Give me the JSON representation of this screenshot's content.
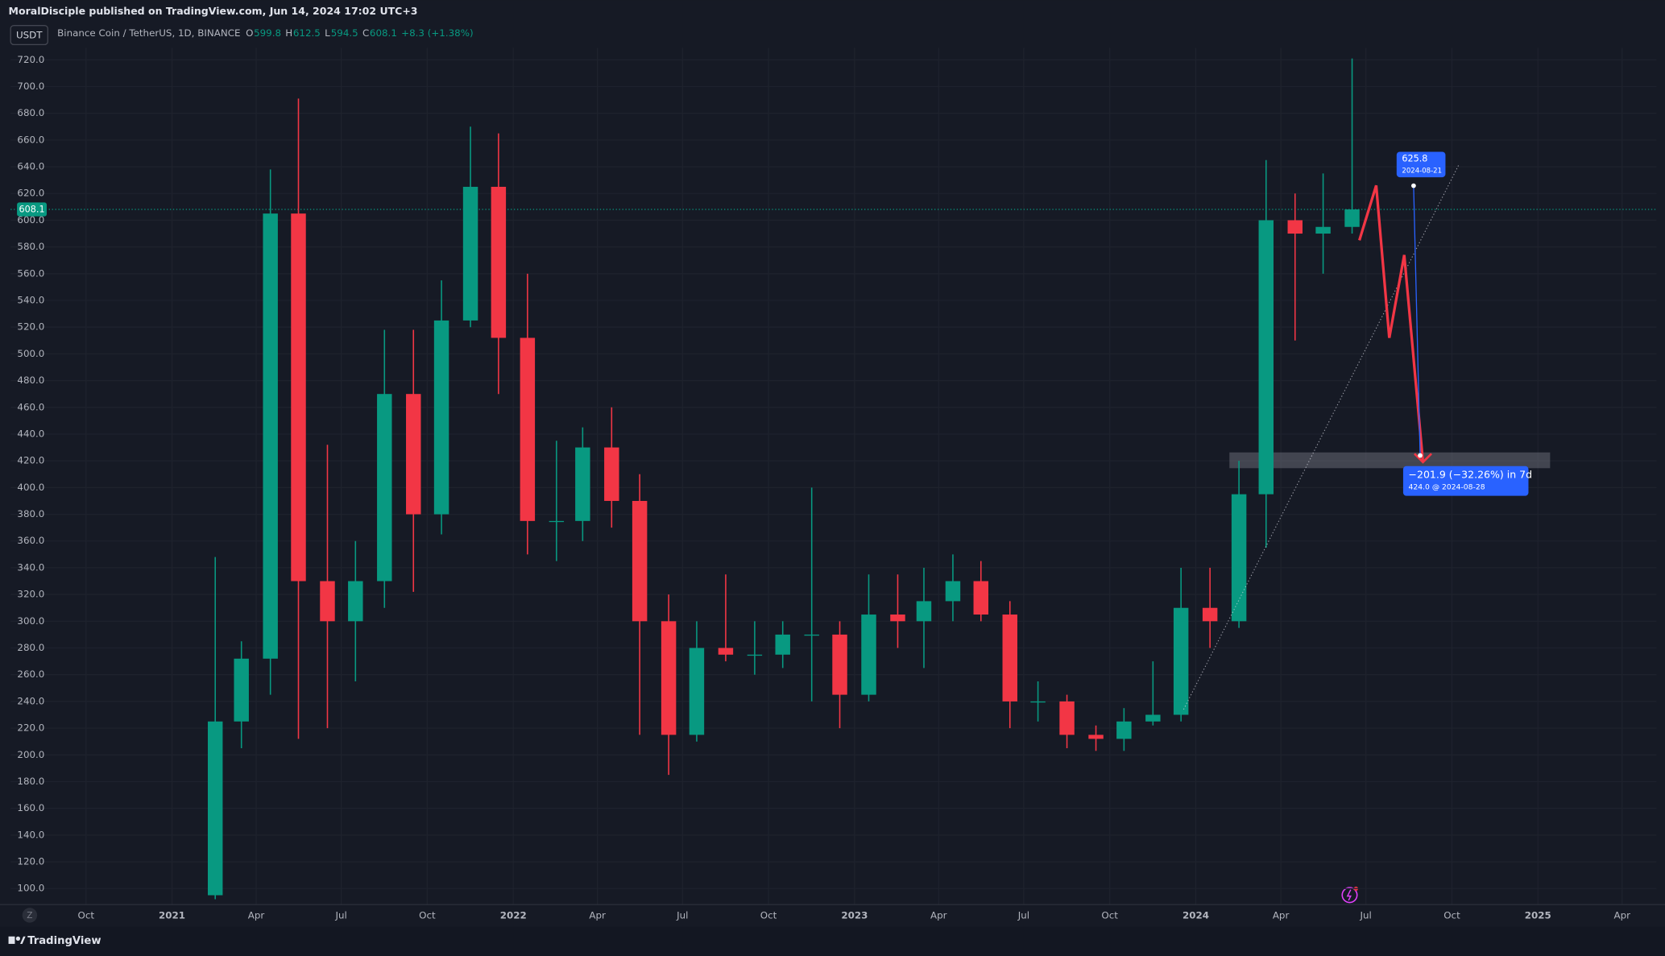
{
  "header": {
    "published": "MoralDisciple published on TradingView.com, Jun 14, 2024 17:02 UTC+3",
    "currency": "USDT",
    "symbol": "Binance Coin / TetherUS, 1D, BINANCE",
    "ohlc": [
      {
        "label": "O",
        "value": 599.8
      },
      {
        "label": "H",
        "value": 612.5
      },
      {
        "label": "L",
        "value": 594.5
      },
      {
        "label": "C",
        "value": 608.1
      }
    ],
    "change": "+8.3 (+1.38%)"
  },
  "chart_data": {
    "type": "candlestick",
    "x": [
      "2021-02",
      "2021-03",
      "2021-04",
      "2021-05",
      "2021-06",
      "2021-07",
      "2021-08",
      "2021-09",
      "2021-10",
      "2021-11",
      "2021-12",
      "2022-01",
      "2022-02",
      "2022-03",
      "2022-04",
      "2022-05",
      "2022-06",
      "2022-07",
      "2022-08",
      "2022-09",
      "2022-10",
      "2022-11",
      "2022-12",
      "2023-01",
      "2023-02",
      "2023-03",
      "2023-04",
      "2023-05",
      "2023-06",
      "2023-07",
      "2023-08",
      "2023-09",
      "2023-10",
      "2023-11",
      "2023-12",
      "2024-01",
      "2024-02",
      "2024-03",
      "2024-04",
      "2024-05",
      "2024-06"
    ],
    "open": [
      95,
      225,
      272,
      605,
      330,
      300,
      330,
      470,
      380,
      525,
      625,
      512,
      375,
      375,
      430,
      390,
      300,
      215,
      280,
      275,
      275,
      290,
      290,
      245,
      305,
      300,
      315,
      330,
      305,
      240,
      240,
      215,
      212,
      225,
      230,
      310,
      300,
      395,
      600,
      590,
      595
    ],
    "high": [
      348,
      285,
      638,
      691,
      432,
      360,
      518,
      518,
      555,
      670,
      665,
      560,
      435,
      445,
      460,
      410,
      320,
      300,
      335,
      300,
      300,
      400,
      300,
      335,
      335,
      340,
      350,
      345,
      315,
      255,
      245,
      222,
      235,
      270,
      340,
      340,
      420,
      645,
      620,
      635,
      721
    ],
    "low": [
      92,
      205,
      245,
      212,
      220,
      255,
      310,
      322,
      365,
      520,
      470,
      350,
      345,
      360,
      370,
      215,
      185,
      210,
      270,
      260,
      265,
      240,
      220,
      240,
      280,
      265,
      300,
      300,
      220,
      225,
      205,
      203,
      203,
      222,
      225,
      280,
      295,
      355,
      510,
      560,
      590
    ],
    "close": [
      225,
      272,
      605,
      330,
      300,
      330,
      470,
      380,
      525,
      625,
      512,
      375,
      375,
      430,
      390,
      300,
      215,
      280,
      275,
      275,
      290,
      290,
      245,
      305,
      300,
      315,
      330,
      305,
      240,
      240,
      215,
      212,
      225,
      230,
      310,
      300,
      395,
      600,
      590,
      595,
      608.1
    ],
    "up_color": "#089981",
    "down_color": "#f23645",
    "xlim": [
      "2020-07",
      "2025-05"
    ],
    "xticks": [
      {
        "value": "2020-10",
        "label": "Oct"
      },
      {
        "value": "2021-01",
        "label": "2021"
      },
      {
        "value": "2021-04",
        "label": "Apr"
      },
      {
        "value": "2021-07",
        "label": "Jul"
      },
      {
        "value": "2021-10",
        "label": "Oct"
      },
      {
        "value": "2022-01",
        "label": "2022"
      },
      {
        "value": "2022-04",
        "label": "Apr"
      },
      {
        "value": "2022-07",
        "label": "Jul"
      },
      {
        "value": "2022-10",
        "label": "Oct"
      },
      {
        "value": "2023-01",
        "label": "2023"
      },
      {
        "value": "2023-04",
        "label": "Apr"
      },
      {
        "value": "2023-07",
        "label": "Jul"
      },
      {
        "value": "2023-10",
        "label": "Oct"
      },
      {
        "value": "2024-01",
        "label": "2024"
      },
      {
        "value": "2024-04",
        "label": "Apr"
      },
      {
        "value": "2024-07",
        "label": "Jul"
      },
      {
        "value": "2024-10",
        "label": "Oct"
      },
      {
        "value": "2025-01",
        "label": "2025"
      },
      {
        "value": "2025-04",
        "label": "Apr"
      }
    ],
    "ylim": [
      88,
      729
    ],
    "yticks": [
      {
        "value": 100,
        "label": "100.0"
      },
      {
        "value": 120,
        "label": "120.0"
      },
      {
        "value": 140,
        "label": "140.0"
      },
      {
        "value": 160,
        "label": "160.0"
      },
      {
        "value": 180,
        "label": "180.0"
      },
      {
        "value": 200,
        "label": "200.0"
      },
      {
        "value": 220,
        "label": "220.0"
      },
      {
        "value": 240,
        "label": "240.0"
      },
      {
        "value": 260,
        "label": "260.0"
      },
      {
        "value": 280,
        "label": "280.0"
      },
      {
        "value": 300,
        "label": "300.0"
      },
      {
        "value": 320,
        "label": "320.0"
      },
      {
        "value": 340,
        "label": "340.0"
      },
      {
        "value": 360,
        "label": "360.0"
      },
      {
        "value": 380,
        "label": "380.0"
      },
      {
        "value": 400,
        "label": "400.0"
      },
      {
        "value": 420,
        "label": "420.0"
      },
      {
        "value": 440,
        "label": "440.0"
      },
      {
        "value": 460,
        "label": "460.0"
      },
      {
        "value": 480,
        "label": "480.0"
      },
      {
        "value": 500,
        "label": "500.0"
      },
      {
        "value": 520,
        "label": "520.0"
      },
      {
        "value": 540,
        "label": "540.0"
      },
      {
        "value": 560,
        "label": "560.0"
      },
      {
        "value": 580,
        "label": "580.0"
      },
      {
        "value": 600,
        "label": "600.0"
      },
      {
        "value": 620,
        "label": "620.0"
      },
      {
        "value": 640,
        "label": "640.0"
      },
      {
        "value": 660,
        "label": "660.0"
      },
      {
        "value": 680,
        "label": "680.0"
      },
      {
        "value": 700,
        "label": "700.0"
      },
      {
        "value": 720,
        "label": "720.0"
      }
    ],
    "grid": true,
    "last_price": {
      "value": 608.1,
      "label": "608.1",
      "color": "#089981"
    },
    "zone": {
      "x": [
        "2024-02-06",
        "2025-01-14"
      ],
      "y": [
        414.5,
        426.3
      ]
    },
    "trendline": {
      "x": [
        "2023-12-19",
        "2024-10-08"
      ],
      "y": [
        234,
        641
      ]
    },
    "projection": {
      "color": "#f23645",
      "x": [
        "2024-06-24",
        "2024-07-12",
        "2024-07-26",
        "2024-08-11",
        "2024-08-31"
      ],
      "y": [
        585,
        626,
        512,
        574,
        419
      ]
    },
    "measure": {
      "color": "#2962ff",
      "x": [
        "2024-08-21",
        "2024-08-28"
      ],
      "y": [
        625.8,
        424
      ],
      "start_date": "2024-08-21",
      "text": "−201.9 (−32.26%) in 7d",
      "end_text": "424.0 @ 2024-08-28"
    }
  },
  "footer": {
    "brand": "TradingView",
    "timezone_badge": "Z"
  }
}
